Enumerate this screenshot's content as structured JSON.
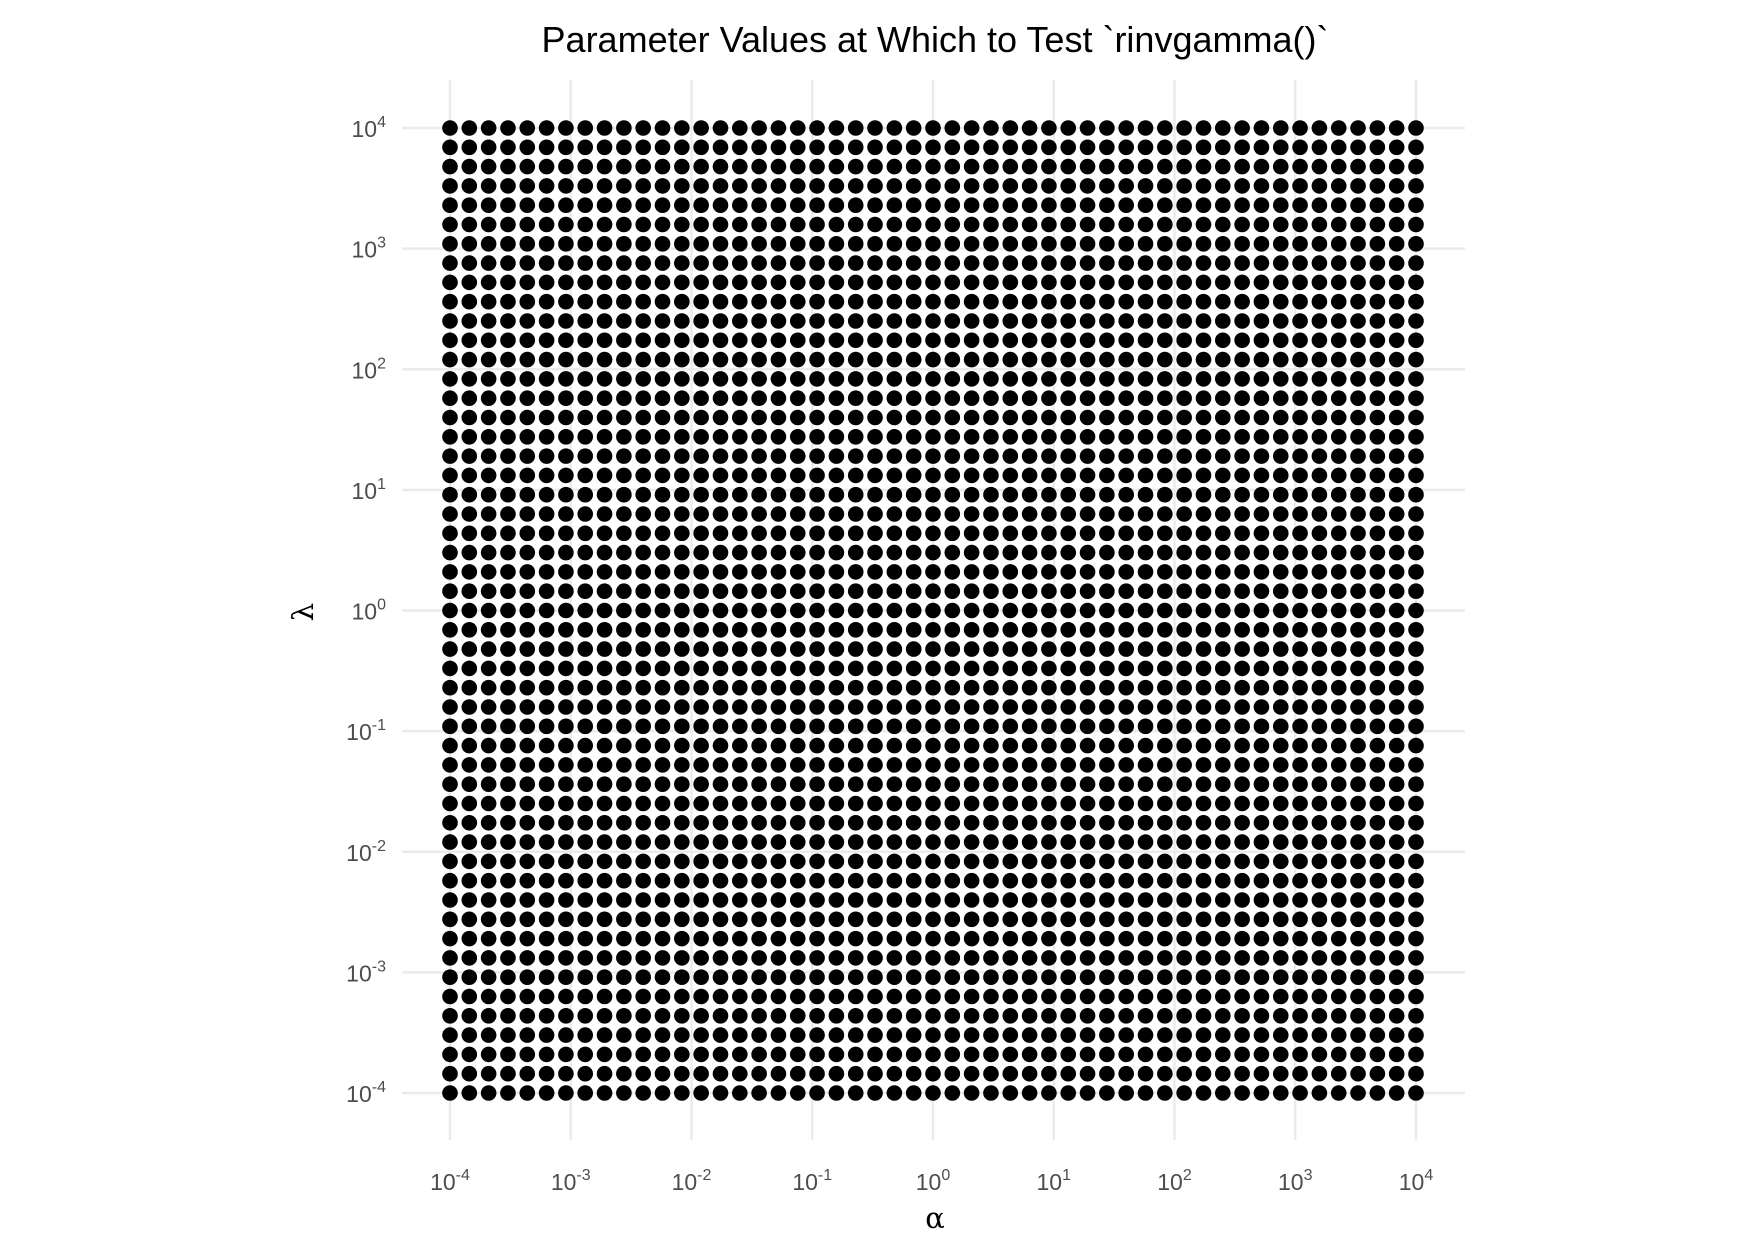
{
  "chart_data": {
    "type": "scatter",
    "title": "Parameter Values at Which to Test `rinvgamma()`",
    "xlabel": "α",
    "ylabel": "λ",
    "x_scale": "log10",
    "y_scale": "log10",
    "xlim": [
      0.0001,
      10000
    ],
    "ylim": [
      0.0001,
      10000
    ],
    "grid": true,
    "point_color": "#000000",
    "grid_color": "#ebebeb",
    "points_are_full_grid_of_x_and_y_values": true,
    "x_values": [
      0.0001,
      0.0001445,
      0.0002089,
      0.000302,
      0.0004365,
      0.000631,
      0.000912,
      0.001318,
      0.001905,
      0.002754,
      0.003981,
      0.005754,
      0.008318,
      0.01202,
      0.01738,
      0.02512,
      0.03631,
      0.05248,
      0.07586,
      0.1096,
      0.1585,
      0.2291,
      0.3311,
      0.4786,
      0.6918,
      1,
      1.445,
      2.089,
      3.02,
      4.365,
      6.31,
      9.12,
      13.18,
      19.05,
      27.54,
      39.81,
      57.54,
      83.18,
      120.2,
      173.8,
      251.2,
      363.1,
      524.8,
      758.6,
      1096,
      1585,
      2291,
      3311,
      4786,
      6918,
      10000
    ],
    "y_values": [
      0.0001,
      0.0001445,
      0.0002089,
      0.000302,
      0.0004365,
      0.000631,
      0.000912,
      0.001318,
      0.001905,
      0.002754,
      0.003981,
      0.005754,
      0.008318,
      0.01202,
      0.01738,
      0.02512,
      0.03631,
      0.05248,
      0.07586,
      0.1096,
      0.1585,
      0.2291,
      0.3311,
      0.4786,
      0.6918,
      1,
      1.445,
      2.089,
      3.02,
      4.365,
      6.31,
      9.12,
      13.18,
      19.05,
      27.54,
      39.81,
      57.54,
      83.18,
      120.2,
      173.8,
      251.2,
      363.1,
      524.8,
      758.6,
      1096,
      1585,
      2291,
      3311,
      4786,
      6918,
      10000
    ],
    "x_ticks": [
      {
        "base": "10",
        "exp": "-4"
      },
      {
        "base": "10",
        "exp": "-3"
      },
      {
        "base": "10",
        "exp": "-2"
      },
      {
        "base": "10",
        "exp": "-1"
      },
      {
        "base": "10",
        "exp": "0"
      },
      {
        "base": "10",
        "exp": "1"
      },
      {
        "base": "10",
        "exp": "2"
      },
      {
        "base": "10",
        "exp": "3"
      },
      {
        "base": "10",
        "exp": "4"
      }
    ],
    "y_ticks": [
      {
        "base": "10",
        "exp": "-4"
      },
      {
        "base": "10",
        "exp": "-3"
      },
      {
        "base": "10",
        "exp": "-2"
      },
      {
        "base": "10",
        "exp": "-1"
      },
      {
        "base": "10",
        "exp": "0"
      },
      {
        "base": "10",
        "exp": "1"
      },
      {
        "base": "10",
        "exp": "2"
      },
      {
        "base": "10",
        "exp": "3"
      },
      {
        "base": "10",
        "exp": "4"
      }
    ]
  }
}
